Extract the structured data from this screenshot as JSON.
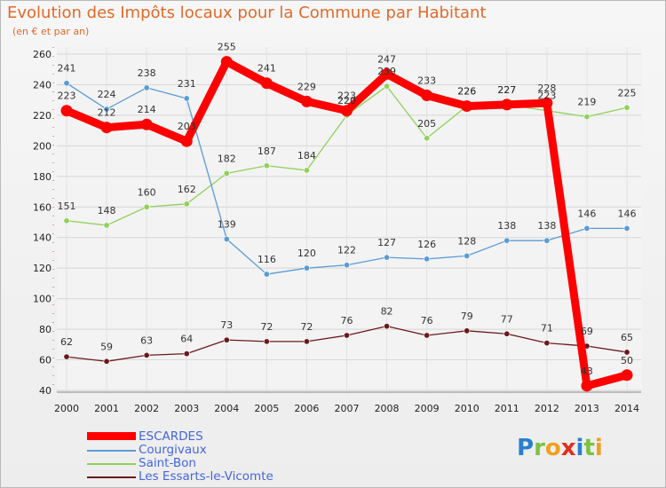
{
  "title": "Evolution des Impôts locaux pour la Commune par Habitant",
  "subtitle": "(en € et par an)",
  "logo": {
    "letters": [
      "P",
      "r",
      "o",
      "x",
      "i",
      "t",
      "i"
    ],
    "colors": [
      "#2a7fd0",
      "#7cc242",
      "#f0a020",
      "#e03020",
      "#2a7fd0",
      "#7cc242",
      "#f0a020"
    ]
  },
  "chart_data": {
    "type": "line",
    "title": "Evolution des Impôts locaux pour la Commune par Habitant",
    "ylabel": "(en € et par an)",
    "xlabel": "",
    "ylim": [
      40,
      260
    ],
    "yticks": [
      "40",
      "60",
      "80",
      "100",
      "120",
      "140",
      "160",
      "180",
      "200",
      "220",
      "240",
      "260"
    ],
    "x": [
      "2000",
      "2001",
      "2002",
      "2003",
      "2004",
      "2005",
      "2006",
      "2007",
      "2008",
      "2009",
      "2010",
      "2011",
      "2012",
      "2013",
      "2014"
    ],
    "series": [
      {
        "name": "Les Essarts-le-Vicomte",
        "color": "#6b1a1a",
        "values": [
          62,
          59,
          63,
          64,
          73,
          72,
          72,
          76,
          82,
          76,
          79,
          77,
          71,
          69,
          65
        ]
      },
      {
        "name": "Saint-Bon",
        "color": "#8fd15a",
        "values": [
          151,
          148,
          160,
          162,
          182,
          187,
          184,
          220,
          239,
          205,
          226,
          227,
          223,
          219,
          225
        ]
      },
      {
        "name": "Courgivaux",
        "color": "#5b9bd5",
        "values": [
          241,
          224,
          238,
          231,
          139,
          116,
          120,
          122,
          127,
          126,
          128,
          138,
          138,
          146,
          146
        ]
      },
      {
        "name": "ESCARDES",
        "color": "#ff0000",
        "values": [
          223,
          212,
          214,
          203,
          255,
          241,
          229,
          223,
          247,
          233,
          226,
          227,
          228,
          43,
          50
        ]
      }
    ],
    "legend": [
      "ESCARDES",
      "Courgivaux",
      "Saint-Bon",
      "Les Essarts-le-Vicomte"
    ],
    "legend_position": "bottom-left"
  }
}
